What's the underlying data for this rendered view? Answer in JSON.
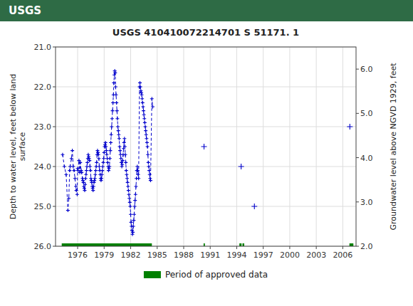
{
  "chart_data": {
    "type": "line",
    "title": "USGS 410410072214701 S 51171. 1",
    "annotations": [
      {
        "text": "USGS"
      }
    ],
    "y_label": "Depth to water level, feet below land\nsurface",
    "y2_label": "Groundwater level above NGVD 1929, feet",
    "xlim": [
      1973.5,
      2007.5
    ],
    "xticks": [
      1976,
      1979,
      1982,
      1985,
      1988,
      1991,
      1994,
      1997,
      2000,
      2003,
      2006
    ],
    "ylim": [
      26.0,
      21.0
    ],
    "yticks": [
      {
        "value": 21.0,
        "label": "21.0"
      },
      {
        "value": 22.0,
        "label": "22.0"
      },
      {
        "value": 23.0,
        "label": "23.0"
      },
      {
        "value": 24.0,
        "label": "24.0"
      },
      {
        "value": 25.0,
        "label": "25.0"
      },
      {
        "value": 26.0,
        "label": "26.0"
      }
    ],
    "y2lim": [
      2.0,
      6.5
    ],
    "y2ticks": [
      {
        "value": 2.0,
        "label": "2.0"
      },
      {
        "value": 3.0,
        "label": "3.0"
      },
      {
        "value": 4.0,
        "label": "4.0"
      },
      {
        "value": 5.0,
        "label": "5.0"
      },
      {
        "value": 6.0,
        "label": "6.0"
      }
    ],
    "grid": true,
    "legend": "bottom",
    "series": [
      {
        "color": "#0000cc",
        "marker": "plus",
        "line_style": "dashed",
        "x": [
          1974.3,
          1974.5,
          1974.7,
          1974.9,
          1975.0,
          1975.1,
          1975.15,
          1975.3,
          1975.4,
          1975.5,
          1975.6,
          1975.7,
          1975.8,
          1975.85,
          1975.95,
          1976.0,
          1976.05,
          1976.15,
          1976.25,
          1976.3,
          1976.4,
          1976.45,
          1976.55,
          1976.6,
          1976.65,
          1976.7,
          1976.75,
          1976.8,
          1976.85,
          1976.9,
          1976.95,
          1977.0,
          1977.05,
          1977.1,
          1977.15,
          1977.2,
          1977.25,
          1977.3,
          1977.35,
          1977.4,
          1977.45,
          1977.5,
          1977.55,
          1977.6,
          1977.65,
          1977.7,
          1977.75,
          1977.8,
          1977.85,
          1977.9,
          1977.95,
          1978.0,
          1978.05,
          1978.1,
          1978.15,
          1978.2,
          1978.25,
          1978.3,
          1978.35,
          1978.4,
          1978.45,
          1978.5,
          1978.55,
          1978.6,
          1978.65,
          1978.7,
          1978.75,
          1978.8,
          1978.85,
          1978.9,
          1978.95,
          1979.0,
          1979.05,
          1979.1,
          1979.15,
          1979.2,
          1979.25,
          1979.3,
          1979.35,
          1979.4,
          1979.45,
          1979.5,
          1979.55,
          1979.6,
          1979.65,
          1979.7,
          1979.75,
          1979.8,
          1979.85,
          1979.9,
          1979.95,
          1980.0,
          1980.05,
          1980.1,
          1980.15,
          1980.2,
          1980.25,
          1980.3,
          1980.35,
          1980.4,
          1980.45,
          1980.5,
          1980.55,
          1980.6,
          1980.65,
          1980.7,
          1980.75,
          1980.8,
          1980.85,
          1980.9,
          1980.95,
          1981.0,
          1981.05,
          1981.1,
          1981.15,
          1981.2,
          1981.25,
          1981.3,
          1981.35,
          1981.4,
          1981.45,
          1981.5,
          1981.55,
          1981.6,
          1981.65,
          1981.7,
          1981.75,
          1981.8,
          1981.85,
          1981.9,
          1981.95,
          1982.0,
          1982.05,
          1982.1,
          1982.15,
          1982.2,
          1982.25,
          1982.3,
          1982.35,
          1982.4,
          1982.45,
          1982.5,
          1982.55,
          1982.6,
          1982.65,
          1982.7,
          1982.75,
          1982.8,
          1982.85,
          1982.9,
          1983.0,
          1983.05,
          1983.1,
          1983.15,
          1983.2,
          1983.25,
          1983.3,
          1983.35,
          1983.4,
          1983.45,
          1983.5,
          1983.55,
          1983.6,
          1983.65,
          1983.7,
          1983.75,
          1983.8,
          1983.85,
          1983.9,
          1983.95,
          1984.0,
          1984.05,
          1984.1,
          1984.15,
          1984.2,
          1984.25,
          1984.4,
          1984.5
        ],
        "values": [
          23.7,
          24.0,
          24.2,
          25.1,
          24.8,
          24.1,
          24.0,
          23.8,
          23.6,
          24.0,
          24.1,
          24.3,
          24.5,
          24.6,
          24.7,
          24.05,
          24.1,
          23.85,
          24.15,
          23.9,
          24.1,
          24.15,
          24.3,
          24.35,
          24.4,
          24.5,
          24.55,
          24.6,
          24.45,
          24.3,
          24.2,
          24.1,
          24.0,
          23.9,
          23.8,
          23.7,
          23.75,
          23.8,
          23.85,
          24.0,
          24.1,
          24.3,
          24.35,
          24.4,
          24.5,
          24.55,
          24.6,
          24.5,
          24.4,
          24.35,
          24.3,
          24.2,
          24.1,
          24.0,
          23.9,
          23.7,
          23.6,
          23.65,
          23.7,
          23.8,
          24.0,
          24.1,
          24.2,
          24.3,
          24.35,
          24.3,
          24.2,
          24.1,
          24.0,
          23.9,
          23.8,
          23.65,
          23.5,
          23.45,
          23.4,
          23.5,
          23.6,
          23.7,
          23.8,
          23.9,
          24.0,
          24.1,
          24.05,
          24.0,
          23.8,
          23.6,
          23.4,
          23.2,
          23.0,
          22.8,
          22.6,
          22.4,
          22.2,
          21.9,
          21.7,
          21.6,
          21.65,
          22.0,
          22.2,
          22.4,
          22.6,
          22.8,
          23.0,
          23.1,
          23.2,
          23.3,
          23.5,
          23.6,
          23.7,
          23.8,
          23.9,
          24.0,
          23.95,
          23.85,
          23.7,
          23.55,
          23.4,
          23.3,
          23.5,
          23.7,
          23.9,
          24.1,
          24.2,
          24.3,
          24.4,
          24.5,
          24.6,
          24.7,
          24.8,
          24.9,
          25.0,
          25.2,
          25.4,
          25.5,
          25.6,
          25.7,
          25.65,
          25.5,
          25.35,
          25.2,
          25.0,
          24.85,
          24.7,
          24.5,
          24.3,
          24.1,
          24.0,
          24.1,
          24.2,
          24.3,
          22.0,
          21.9,
          22.0,
          22.1,
          22.15,
          22.2,
          22.3,
          22.4,
          22.5,
          22.6,
          22.7,
          22.8,
          22.9,
          23.0,
          23.1,
          23.2,
          23.3,
          23.4,
          23.5,
          23.7,
          23.9,
          24.0,
          24.1,
          24.2,
          24.3,
          24.35,
          22.3,
          22.5
        ]
      },
      {
        "color": "#0000cc",
        "marker": "plus",
        "x": [
          1990.3
        ],
        "values": [
          23.5
        ]
      },
      {
        "color": "#0000cc",
        "marker": "plus",
        "x": [
          1994.5
        ],
        "values": [
          24.0
        ]
      },
      {
        "color": "#0000cc",
        "marker": "plus",
        "x": [
          1996.0
        ],
        "values": [
          25.0
        ]
      },
      {
        "color": "#0000cc",
        "marker": "plus",
        "x": [
          2006.8
        ],
        "values": [
          23.0
        ]
      },
      {
        "name": "Period of approved data",
        "type": "bar",
        "color": "#008000",
        "y": 26.0,
        "start": [
          1974.2,
          1990.25,
          1994.3,
          1994.65,
          2006.75
        ],
        "end": [
          1984.4,
          1990.4,
          1994.55,
          1994.85,
          2007.2
        ]
      }
    ]
  }
}
